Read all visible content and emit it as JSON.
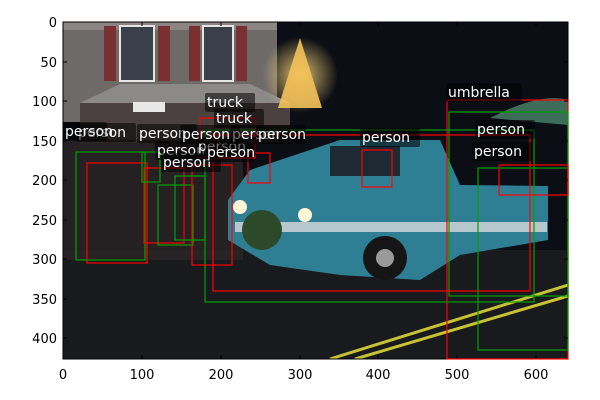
{
  "scene": {
    "sky_color": "#0b0e14",
    "building_color": "#6e6a68",
    "road_color": "#191a1d",
    "truck_color": "#2f7f94",
    "tree_light_color": "#f3c25a"
  },
  "axes": {
    "x_ticks": [
      "0",
      "100",
      "200",
      "300",
      "400",
      "500",
      "600"
    ],
    "y_ticks": [
      "0",
      "50",
      "100",
      "150",
      "200",
      "250",
      "300",
      "350",
      "400"
    ]
  },
  "annotations": {
    "colors": {
      "red": "#ff0000",
      "green": "#00a000"
    },
    "labels": [
      {
        "text": "umbrella"
      },
      {
        "text": "truck"
      },
      {
        "text": "truck"
      },
      {
        "text": "person"
      },
      {
        "text": "person"
      },
      {
        "text": "person"
      },
      {
        "text": "person"
      },
      {
        "text": "person"
      },
      {
        "text": "person"
      },
      {
        "text": "person"
      },
      {
        "text": "person"
      },
      {
        "text": "person"
      },
      {
        "text": "person"
      },
      {
        "text": "person"
      },
      {
        "text": "person"
      },
      {
        "text": "person"
      }
    ]
  }
}
